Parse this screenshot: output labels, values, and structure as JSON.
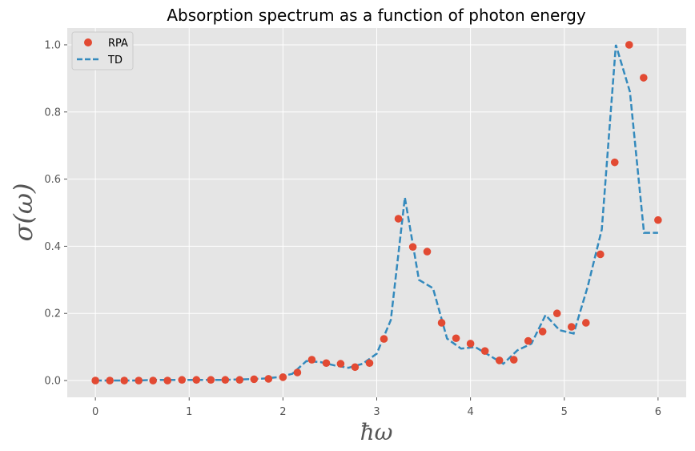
{
  "chart_data": {
    "type": "line",
    "title": "Absorption spectrum as a function of photon energy",
    "xlabel": "ħω",
    "ylabel": "σ(ω)",
    "xlim": [
      -0.3,
      6.3
    ],
    "ylim": [
      -0.05,
      1.05
    ],
    "xticks": [
      "0",
      "1",
      "2",
      "3",
      "4",
      "5",
      "6"
    ],
    "yticks": [
      "0.0",
      "0.2",
      "0.4",
      "0.6",
      "0.8",
      "1.0"
    ],
    "grid": true,
    "legend_position": "top-left",
    "colors": {
      "background": "#e5e5e5",
      "grid": "#ffffff",
      "rpa": "#e24a33",
      "td": "#348abd"
    },
    "series": [
      {
        "name": "RPA",
        "style": "markers",
        "x": [
          0.0,
          0.154,
          0.308,
          0.462,
          0.615,
          0.769,
          0.923,
          1.077,
          1.231,
          1.385,
          1.538,
          1.692,
          1.846,
          2.0,
          2.154,
          2.308,
          2.462,
          2.615,
          2.769,
          2.923,
          3.077,
          3.231,
          3.385,
          3.538,
          3.692,
          3.846,
          4.0,
          4.154,
          4.308,
          4.462,
          4.615,
          4.769,
          4.923,
          5.077,
          5.231,
          5.385,
          5.538,
          5.692,
          5.846,
          6.0
        ],
        "y": [
          0.0,
          0.0,
          0.0,
          0.0,
          0.0,
          0.0,
          0.002,
          0.002,
          0.002,
          0.002,
          0.002,
          0.004,
          0.005,
          0.01,
          0.024,
          0.062,
          0.052,
          0.05,
          0.04,
          0.052,
          0.124,
          0.482,
          0.398,
          0.384,
          0.172,
          0.126,
          0.11,
          0.088,
          0.06,
          0.062,
          0.118,
          0.146,
          0.2,
          0.16,
          0.172,
          0.376,
          0.65,
          1.0,
          0.902,
          0.478
        ]
      },
      {
        "name": "TD",
        "style": "dashed",
        "x": [
          0.0,
          0.15,
          0.3,
          0.45,
          0.6,
          0.75,
          0.9,
          1.05,
          1.2,
          1.35,
          1.5,
          1.65,
          1.8,
          1.95,
          2.1,
          2.25,
          2.4,
          2.55,
          2.7,
          2.85,
          3.0,
          3.15,
          3.3,
          3.45,
          3.6,
          3.75,
          3.9,
          4.05,
          4.2,
          4.35,
          4.5,
          4.65,
          4.8,
          4.95,
          5.1,
          5.25,
          5.4,
          5.55,
          5.7,
          5.85,
          6.0
        ],
        "y": [
          0.0,
          0.0,
          0.0,
          0.0,
          0.002,
          0.002,
          0.002,
          0.002,
          0.002,
          0.002,
          0.003,
          0.004,
          0.006,
          0.01,
          0.02,
          0.058,
          0.055,
          0.045,
          0.038,
          0.05,
          0.08,
          0.18,
          0.545,
          0.3,
          0.275,
          0.125,
          0.095,
          0.1,
          0.075,
          0.05,
          0.09,
          0.11,
          0.195,
          0.15,
          0.14,
          0.28,
          0.45,
          1.0,
          0.86,
          0.44,
          0.44
        ]
      }
    ]
  }
}
